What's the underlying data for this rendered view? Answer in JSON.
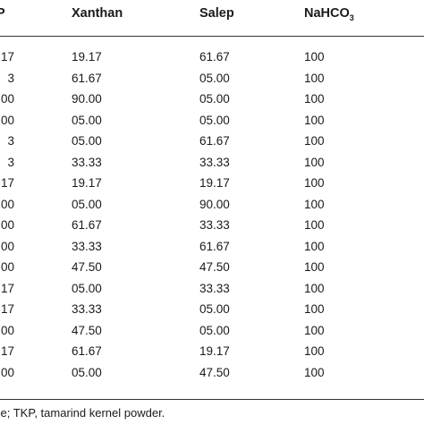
{
  "table": {
    "headers": {
      "col0": "P",
      "xanthan": "Xanthan",
      "salep": "Salep",
      "nahco3_base": "NaHCO",
      "nahco3_sub": "3"
    },
    "rows": [
      {
        "c0": "17",
        "xanthan": "19.17",
        "salep": "61.67",
        "nahco3": "100"
      },
      {
        "c0": "3",
        "xanthan": "61.67",
        "salep": "05.00",
        "nahco3": "100"
      },
      {
        "c0": "00",
        "xanthan": "90.00",
        "salep": "05.00",
        "nahco3": "100"
      },
      {
        "c0": "00",
        "xanthan": "05.00",
        "salep": "05.00",
        "nahco3": "100"
      },
      {
        "c0": "3",
        "xanthan": "05.00",
        "salep": "61.67",
        "nahco3": "100"
      },
      {
        "c0": "3",
        "xanthan": "33.33",
        "salep": "33.33",
        "nahco3": "100"
      },
      {
        "c0": "17",
        "xanthan": "19.17",
        "salep": "19.17",
        "nahco3": "100"
      },
      {
        "c0": "00",
        "xanthan": "05.00",
        "salep": "90.00",
        "nahco3": "100"
      },
      {
        "c0": "00",
        "xanthan": "61.67",
        "salep": "33.33",
        "nahco3": "100"
      },
      {
        "c0": "00",
        "xanthan": "33.33",
        "salep": "61.67",
        "nahco3": "100"
      },
      {
        "c0": "00",
        "xanthan": "47.50",
        "salep": "47.50",
        "nahco3": "100"
      },
      {
        "c0": "17",
        "xanthan": "05.00",
        "salep": "33.33",
        "nahco3": "100"
      },
      {
        "c0": "17",
        "xanthan": "33.33",
        "salep": "05.00",
        "nahco3": "100"
      },
      {
        "c0": "00",
        "xanthan": "47.50",
        "salep": "05.00",
        "nahco3": "100"
      },
      {
        "c0": "17",
        "xanthan": "61.67",
        "salep": "19.17",
        "nahco3": "100"
      },
      {
        "c0": "00",
        "xanthan": "05.00",
        "salep": "47.50",
        "nahco3": "100"
      }
    ]
  },
  "footnote": "ce; TKP, tamarind kernel powder."
}
